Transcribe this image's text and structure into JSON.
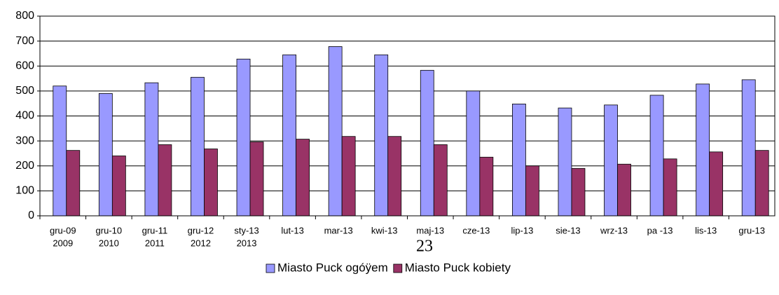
{
  "chart_data": {
    "type": "bar",
    "categories": [
      [
        "gru-09",
        "2009"
      ],
      [
        "gru-10",
        "2010"
      ],
      [
        "gru-11",
        "2011"
      ],
      [
        "gru-12",
        "2012"
      ],
      [
        "sty-13",
        "2013"
      ],
      [
        "lut-13"
      ],
      [
        "mar-13"
      ],
      [
        "kwi-13"
      ],
      [
        "maj-13"
      ],
      [
        "cze-13"
      ],
      [
        "lip-13"
      ],
      [
        "sie-13"
      ],
      [
        "wrz-13"
      ],
      [
        "pa -13"
      ],
      [
        "lis-13"
      ],
      [
        "gru-13"
      ]
    ],
    "series": [
      {
        "name": "Miasto Puck ogóÿem",
        "color": "#9999ff",
        "values": [
          520,
          490,
          533,
          555,
          628,
          645,
          678,
          645,
          583,
          500,
          448,
          432,
          444,
          483,
          528,
          545
        ]
      },
      {
        "name": "Miasto Puck kobiety",
        "color": "#993366",
        "values": [
          262,
          240,
          285,
          268,
          296,
          307,
          318,
          318,
          285,
          235,
          200,
          190,
          207,
          228,
          256,
          262
        ]
      }
    ],
    "ylim": [
      0,
      800
    ],
    "yticks": [
      0,
      100,
      200,
      300,
      400,
      500,
      600,
      700,
      800
    ],
    "grid": true,
    "legend": "bottom",
    "page_number": "23"
  }
}
